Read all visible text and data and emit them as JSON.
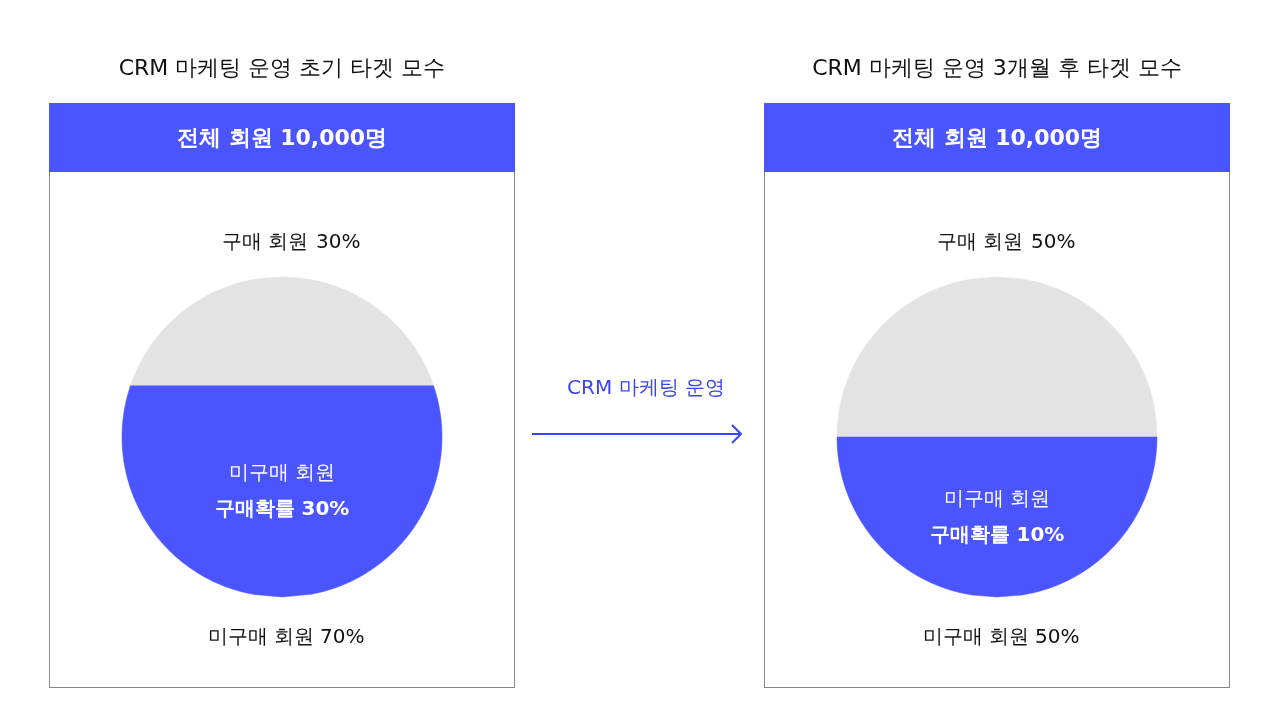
{
  "chart_data": [
    {
      "type": "other",
      "title": "CRM 마케팅 운영 초기 타겟 모수",
      "subtitle": "전체 회원 10,000명",
      "categories": [
        "구매 회원",
        "미구매 회원"
      ],
      "values": [
        30,
        70
      ],
      "value_labels": [
        "30%",
        "70%"
      ],
      "colors": [
        "#e3e3e3",
        "#4a55ff"
      ],
      "annotations": [
        "미구매 회원",
        "구매확률 30%"
      ]
    },
    {
      "type": "other",
      "title": "CRM 마케팅 운영"
    },
    {
      "type": "other",
      "title": "CRM 마케팅 운영 3개월 후 타겟 모수",
      "subtitle": "전체 회원 10,000명",
      "categories": [
        "구매 회원",
        "미구매 회원"
      ],
      "values": [
        50,
        50
      ],
      "value_labels": [
        "50%",
        "50%"
      ],
      "colors": [
        "#e3e3e3",
        "#4a55ff"
      ],
      "annotations": [
        "미구매 회원",
        "구매확률 10%"
      ]
    }
  ]
}
